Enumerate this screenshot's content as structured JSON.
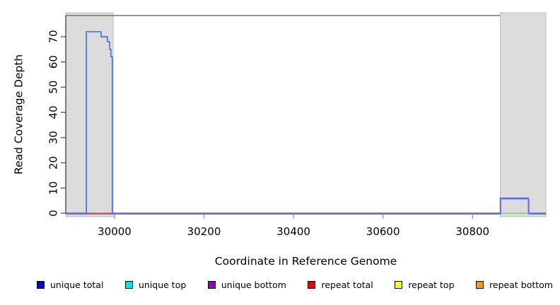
{
  "chart_data": {
    "type": "line",
    "title": "",
    "xlabel": "Coordinate in Reference Genome",
    "ylabel": "Read Coverage Depth",
    "xlim": [
      29891,
      30964
    ],
    "ylim": [
      0,
      78.4
    ],
    "x_ticks": [
      30000,
      30200,
      30400,
      30600,
      30800
    ],
    "y_ticks": [
      0,
      10,
      20,
      30,
      40,
      50,
      60,
      70
    ],
    "grid": false,
    "legend_position": "bottom",
    "band_color": "#dcdcdc",
    "band_border_color": "#bfbfbf",
    "frame_color": "#737373",
    "highlight_bands": [
      {
        "name": "left-gray-band",
        "x0": 29891,
        "x1": 29997
      },
      {
        "name": "right-gray-band",
        "x0": 30862,
        "x1": 30964
      }
    ],
    "series": [
      {
        "name": "repeat total",
        "color": "#ee3c3c",
        "points": [
          [
            29937,
            0
          ],
          [
            29995,
            0
          ]
        ]
      },
      {
        "name": "green baseline segment",
        "color": "#85c985",
        "points": [
          [
            30863,
            0
          ],
          [
            30924,
            0
          ]
        ]
      },
      {
        "name": "unique total",
        "color": "#2f5fe8",
        "points": [
          [
            29891,
            0
          ],
          [
            29937,
            0
          ],
          [
            29937,
            72
          ],
          [
            29970,
            72
          ],
          [
            29970,
            70
          ],
          [
            29984,
            70
          ],
          [
            29984,
            68
          ],
          [
            29989,
            68
          ],
          [
            29989,
            65
          ],
          [
            29992,
            65
          ],
          [
            29992,
            62
          ],
          [
            29995,
            62
          ],
          [
            29995,
            0
          ],
          [
            30862,
            0
          ],
          [
            30862,
            6
          ],
          [
            30925,
            6
          ],
          [
            30925,
            0
          ],
          [
            30964,
            0
          ]
        ]
      },
      {
        "name": "unique bottom",
        "color": "#8b76ee",
        "offset": [
          0.8,
          1.3
        ],
        "points": [
          [
            29891,
            0
          ],
          [
            30862,
            0
          ],
          [
            30862,
            6
          ],
          [
            30925,
            6
          ],
          [
            30925,
            0
          ],
          [
            30964,
            0
          ]
        ]
      }
    ]
  },
  "legend": {
    "items": [
      {
        "label": "unique total",
        "color": "#0000ee"
      },
      {
        "label": "unique top",
        "color": "#00e6e6"
      },
      {
        "label": "unique bottom",
        "color": "#9900cc"
      },
      {
        "label": "repeat total",
        "color": "#ee0000"
      },
      {
        "label": "repeat top",
        "color": "#ffff00"
      },
      {
        "label": "repeat bottom",
        "color": "#ff9900"
      }
    ]
  }
}
